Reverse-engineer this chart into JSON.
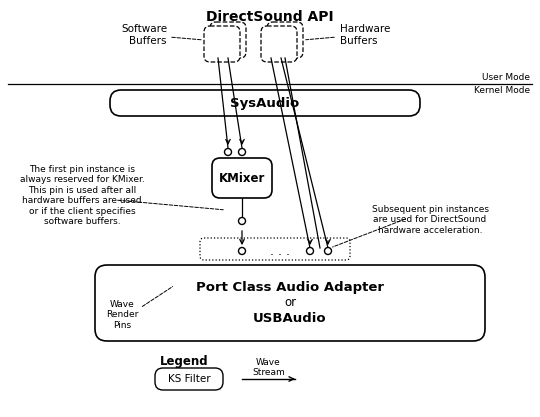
{
  "title": "DirectSound API",
  "bg_color": "#ffffff",
  "line_color": "#000000",
  "user_mode_label": "User Mode",
  "kernel_mode_label": "Kernel Mode",
  "sysaudio_label": "SysAudio",
  "kmixer_label": "KMixer",
  "port_line1": "Port Class Audio Adapter",
  "port_line2": "or",
  "port_line3": "USBAudio",
  "software_buffers_label": "Software\nBuffers",
  "hardware_buffers_label": "Hardware\nBuffers",
  "left_note": "The first pin instance is\nalways reserved for KMixer.\nThis pin is used after all\nhardware buffers are used\nor if the client specifies\nsoftware buffers.",
  "right_note": "Subsequent pin instances\nare used for DirectSound\nhardware acceleration.",
  "wave_render_label": "Wave\nRender\nPins",
  "legend_title": "Legend",
  "legend_filter_label": "KS Filter",
  "legend_stream_label": "Wave\nStream",
  "figw": 5.4,
  "figh": 4.17,
  "dpi": 100
}
